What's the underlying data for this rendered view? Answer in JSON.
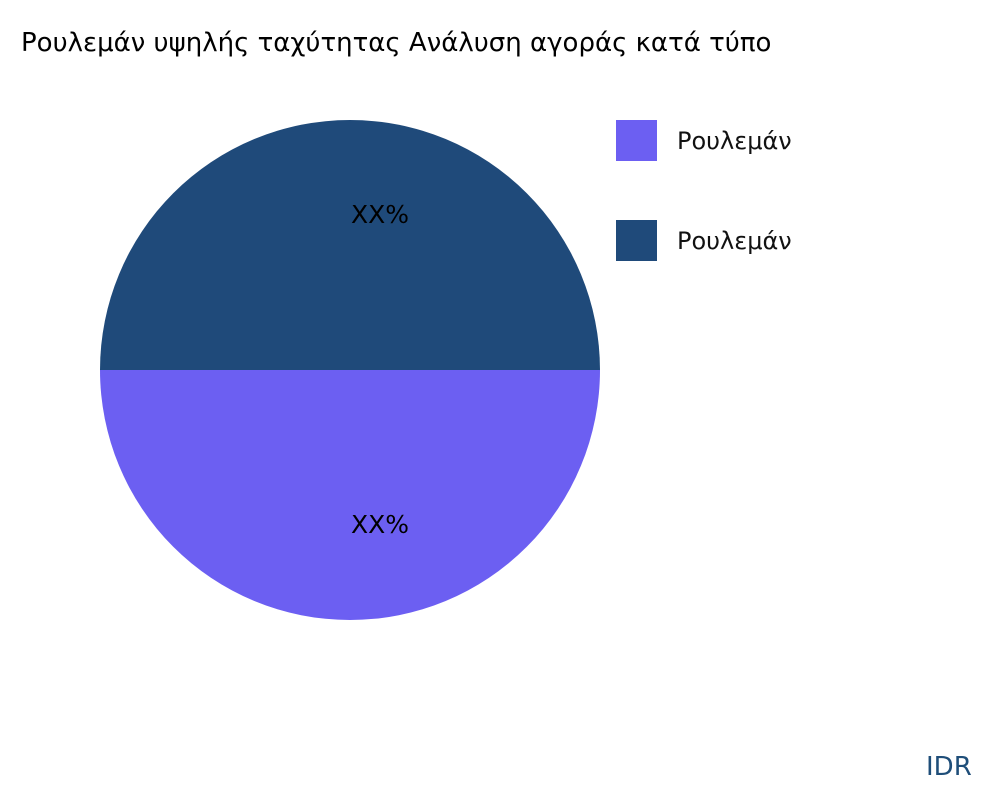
{
  "chart_data": {
    "type": "pie",
    "title": "Ρουλεμάν υψηλής ταχύτητας Ανάλυση αγοράς κατά τύπο",
    "slices": [
      {
        "name": "Ρουλεμάν",
        "value": 50,
        "label": "XX%",
        "color": "#6c5ff2"
      },
      {
        "name": "Ρουλεμάν",
        "value": 50,
        "label": "XX%",
        "color": "#1f4a7a"
      }
    ],
    "legend": "right"
  },
  "watermark": "IDR"
}
